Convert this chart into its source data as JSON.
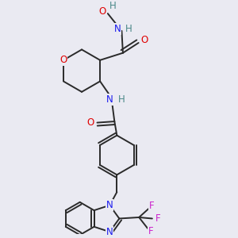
{
  "background_color": "#eaeaf2",
  "bond_color": "#2a2a2a",
  "atom_colors": {
    "O": "#e00000",
    "N": "#1a1aee",
    "F": "#cc22cc",
    "H": "#4a8888",
    "C": "#2a2a2a"
  },
  "lw": 1.4,
  "fontsize": 8.5
}
